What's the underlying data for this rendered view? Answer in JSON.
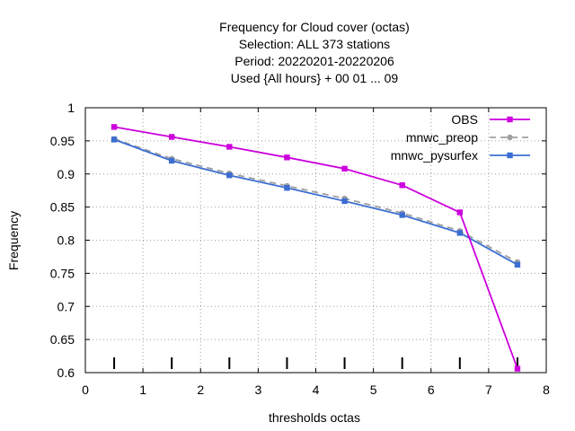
{
  "chart_data": {
    "type": "line",
    "title_lines": [
      "Frequency  for Cloud cover (octas)",
      "Selection: ALL    373 stations",
      "Period: 20220201-20220206",
      "Used {All hours} + 00 01 ... 09"
    ],
    "xlabel": "thresholds octas",
    "ylabel": "Frequency",
    "xlim": [
      0,
      8
    ],
    "ylim": [
      0.6,
      1.0
    ],
    "x_ticks": [
      "0",
      "1",
      "2",
      "3",
      "4",
      "5",
      "6",
      "7",
      "8"
    ],
    "y_ticks": [
      "0.6",
      "0.65",
      "0.7",
      "0.75",
      "0.8",
      "0.85",
      "0.9",
      "0.95",
      "1"
    ],
    "grid": true,
    "legend_position": "top-right",
    "x": [
      0.5,
      1.5,
      2.5,
      3.5,
      4.5,
      5.5,
      6.5,
      7.5
    ],
    "series": [
      {
        "name": "OBS",
        "color": "#cc00dd",
        "dash": "solid",
        "marker": "square",
        "values": [
          0.971,
          0.956,
          0.941,
          0.925,
          0.908,
          0.883,
          0.842,
          0.606
        ]
      },
      {
        "name": "mnwc_preop",
        "color": "#a0a0a0",
        "dash": "dashed",
        "marker": "circle",
        "values": [
          0.953,
          0.923,
          0.901,
          0.882,
          0.863,
          0.841,
          0.814,
          0.767
        ]
      },
      {
        "name": "mnwc_pysurfex",
        "color": "#3c6ed2",
        "dash": "solid",
        "marker": "square",
        "values": [
          0.952,
          0.92,
          0.898,
          0.879,
          0.859,
          0.838,
          0.811,
          0.763
        ]
      }
    ],
    "bottom_tick_marks_x": [
      0.5,
      1.5,
      2.5,
      3.5,
      4.5,
      5.5,
      6.5,
      7.5
    ]
  }
}
